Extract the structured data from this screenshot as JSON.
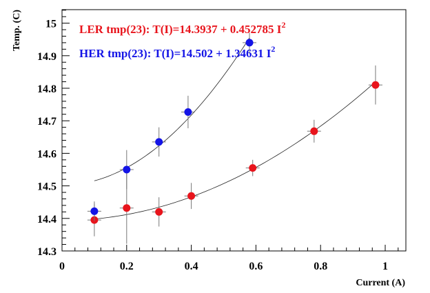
{
  "chart_data": {
    "type": "scatter",
    "xlabel": "Current (A)",
    "ylabel": "Temp. (C)",
    "xlim": [
      0,
      1.06
    ],
    "ylim": [
      14.3,
      15.05
    ],
    "xticks": [
      0,
      0.2,
      0.4,
      0.6,
      0.8,
      1
    ],
    "xtick_labels": [
      "0",
      "0.2",
      "0.4",
      "0.6",
      "0.8",
      "1"
    ],
    "yticks": [
      14.3,
      14.4,
      14.5,
      14.6,
      14.7,
      14.8,
      14.9,
      15
    ],
    "ytick_labels": [
      "14.3",
      "14.4",
      "14.5",
      "14.6",
      "14.7",
      "14.8",
      "14.9",
      "15"
    ],
    "grid": false,
    "legend_position": "top-left",
    "series": [
      {
        "legend_prefix": "LER tmp(23): T(I)=14.3937 + 0.452785 I",
        "legend_sup": "2",
        "color": "#e8141c",
        "fit": {
          "a": 14.3937,
          "b": 0.452785,
          "x_range": [
            0.1,
            0.97
          ]
        },
        "points": [
          {
            "x": 0.1,
            "y": 14.395,
            "err": 0.05
          },
          {
            "x": 0.2,
            "y": 14.432,
            "err": 0.11
          },
          {
            "x": 0.3,
            "y": 14.42,
            "err": 0.045
          },
          {
            "x": 0.4,
            "y": 14.469,
            "err": 0.04
          },
          {
            "x": 0.59,
            "y": 14.555,
            "err": 0.025
          },
          {
            "x": 0.78,
            "y": 14.668,
            "err": 0.035
          },
          {
            "x": 0.97,
            "y": 14.81,
            "err": 0.06
          }
        ]
      },
      {
        "legend_prefix": "HER tmp(23): T(I)=14.502 + 1.34631 I",
        "legend_sup": "2",
        "color": "#1414e6",
        "fit": {
          "a": 14.502,
          "b": 1.34631,
          "x_range": [
            0.1,
            0.58
          ]
        },
        "points": [
          {
            "x": 0.1,
            "y": 14.422,
            "err": 0.03
          },
          {
            "x": 0.2,
            "y": 14.55,
            "err": 0.06
          },
          {
            "x": 0.3,
            "y": 14.635,
            "err": 0.045
          },
          {
            "x": 0.39,
            "y": 14.727,
            "err": 0.05
          },
          {
            "x": 0.58,
            "y": 14.94,
            "err": 0.03
          }
        ]
      }
    ]
  }
}
